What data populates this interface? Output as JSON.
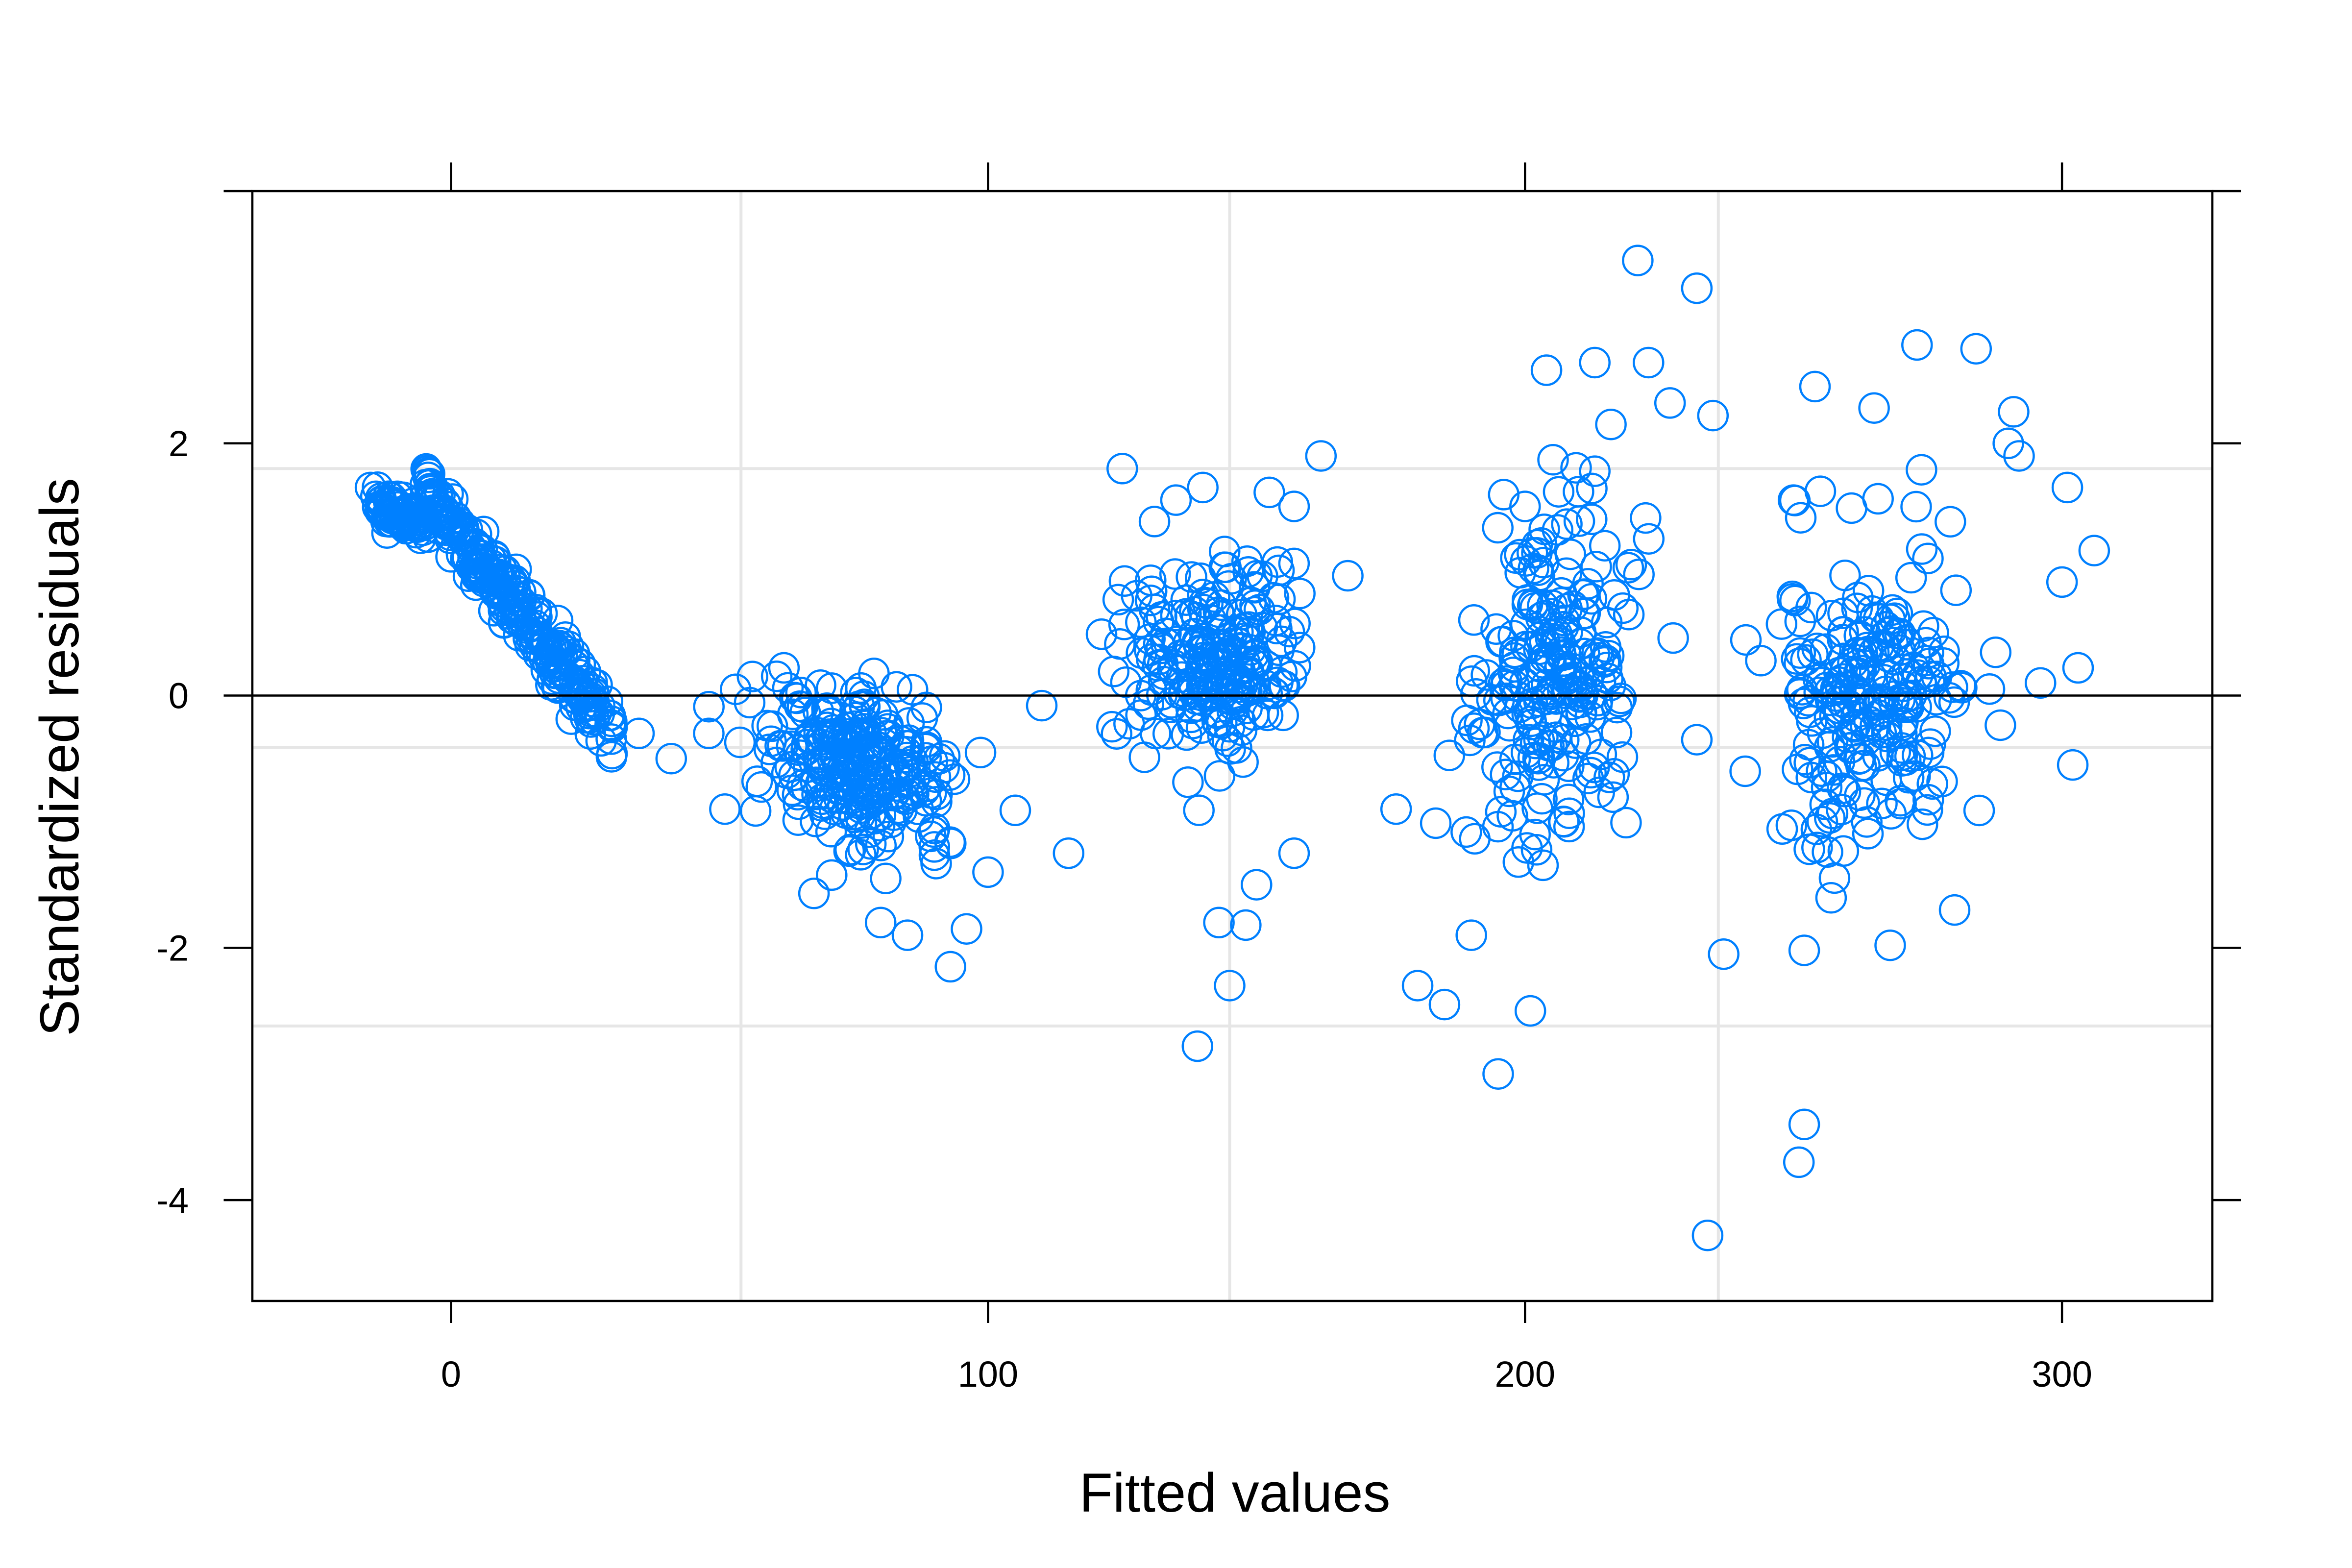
{
  "chart_data": {
    "type": "scatter",
    "title": "",
    "xlabel": "Fitted values",
    "ylabel": "Standardized residuals",
    "xlim": [
      -37,
      328
    ],
    "ylim": [
      -4.8,
      4.0
    ],
    "x_ticks": [
      0,
      100,
      200,
      300
    ],
    "x_tick_labels": [
      "0",
      "100",
      "200",
      "300"
    ],
    "y_ticks": [
      -4,
      -2,
      0,
      2
    ],
    "y_tick_labels": [
      "-4",
      "-2",
      "0",
      "2"
    ],
    "x_gridlines": [
      54,
      145,
      236
    ],
    "y_gridlines": [
      -2.62,
      -0.41,
      1.8
    ],
    "reference_line": {
      "y": 0
    },
    "marker": "open-circle",
    "color": "#0080ff",
    "grid": true,
    "legend": "none",
    "clusters": [
      {
        "x_center": 8,
        "x_spread": 16,
        "y_center": 0.6,
        "y_spread": 0.9,
        "count": 320,
        "trend": "decreasing"
      },
      {
        "x_center": 75,
        "x_spread": 14,
        "y_center": -0.8,
        "y_spread": 0.5,
        "count": 260,
        "trend": "decreasing"
      },
      {
        "x_center": 142,
        "x_spread": 13,
        "y_center": 0.3,
        "y_spread": 0.7,
        "count": 230
      },
      {
        "x_center": 205,
        "x_spread": 12,
        "y_center": 0.0,
        "y_spread": 1.2,
        "count": 230
      },
      {
        "x_center": 265,
        "x_spread": 15,
        "y_center": 0.0,
        "y_spread": 1.1,
        "count": 230
      }
    ],
    "points": [
      [
        -15,
        1.65
      ],
      [
        -14,
        1.58
      ],
      [
        -13,
        1.5
      ],
      [
        -10,
        1.58
      ],
      [
        -8,
        1.4
      ],
      [
        -5,
        1.35
      ],
      [
        0,
        1.1
      ],
      [
        5,
        0.95
      ],
      [
        10,
        0.7
      ],
      [
        15,
        0.45
      ],
      [
        20,
        0.2
      ],
      [
        25,
        0.0
      ],
      [
        30,
        -0.25
      ],
      [
        35,
        -0.3
      ],
      [
        41,
        -0.5
      ],
      [
        48,
        -0.3
      ],
      [
        51,
        -0.9
      ],
      [
        53,
        0.05
      ],
      [
        62,
        0.22
      ],
      [
        70,
        -0.1
      ],
      [
        75,
        -0.6
      ],
      [
        80,
        -1.8
      ],
      [
        85,
        -1.9
      ],
      [
        90,
        -1.2
      ],
      [
        93,
        -2.15
      ],
      [
        96,
        -1.85
      ],
      [
        100,
        -1.4
      ],
      [
        110,
        -0.08
      ],
      [
        115,
        -1.25
      ],
      [
        125,
        1.8
      ],
      [
        131,
        1.38
      ],
      [
        135,
        1.55
      ],
      [
        140,
        1.65
      ],
      [
        139,
        -2.78
      ],
      [
        143,
        -1.8
      ],
      [
        145,
        -2.3
      ],
      [
        148,
        -1.82
      ],
      [
        150,
        -1.5
      ],
      [
        157,
        1.5
      ],
      [
        157,
        -1.25
      ],
      [
        162,
        1.9
      ],
      [
        167,
        0.95
      ],
      [
        176,
        -0.9
      ],
      [
        180,
        -2.3
      ],
      [
        185,
        -2.45
      ],
      [
        190,
        -1.9
      ],
      [
        195,
        -3.0
      ],
      [
        200,
        1.5
      ],
      [
        201,
        -2.5
      ],
      [
        204,
        2.58
      ],
      [
        213,
        2.64
      ],
      [
        216,
        2.15
      ],
      [
        221,
        3.45
      ],
      [
        223,
        2.64
      ],
      [
        227,
        2.32
      ],
      [
        232,
        3.23
      ],
      [
        235,
        2.22
      ],
      [
        232,
        -0.35
      ],
      [
        234,
        -4.28
      ],
      [
        237,
        -2.05
      ],
      [
        241,
        -0.6
      ],
      [
        250,
        1.55
      ],
      [
        252,
        -2.02
      ],
      [
        252,
        -3.4
      ],
      [
        251,
        -3.7
      ],
      [
        254,
        2.45
      ],
      [
        255,
        1.62
      ],
      [
        265,
        2.28
      ],
      [
        268,
        -1.98
      ],
      [
        273,
        2.78
      ],
      [
        280,
        -1.7
      ],
      [
        284,
        2.75
      ],
      [
        290,
        2.0
      ],
      [
        291,
        2.25
      ],
      [
        292,
        1.9
      ],
      [
        296,
        0.1
      ],
      [
        300,
        0.9
      ],
      [
        301,
        1.65
      ],
      [
        302,
        -0.55
      ],
      [
        303,
        0.22
      ],
      [
        306,
        1.15
      ]
    ]
  }
}
